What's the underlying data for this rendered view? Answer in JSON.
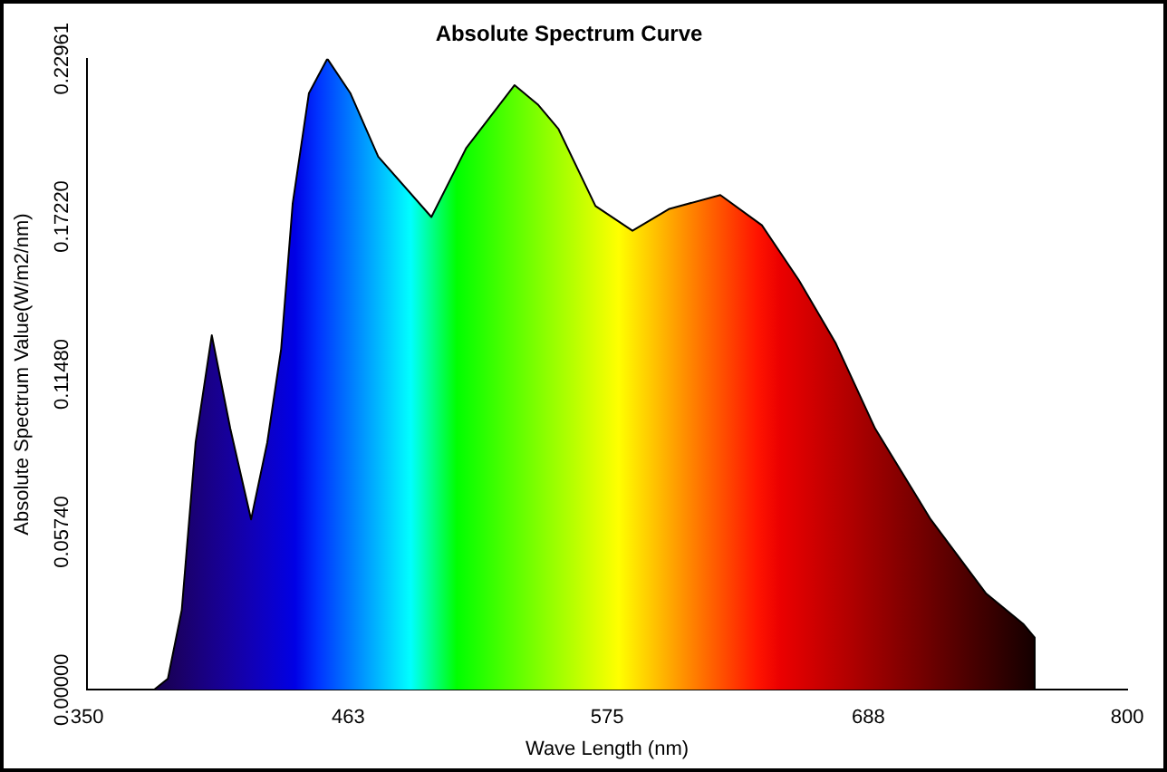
{
  "chart_data": {
    "type": "area",
    "title": "Absolute Spectrum Curve",
    "xlabel": "Wave Length (nm)",
    "ylabel": "Absolute Spectrum Value(W/m2/nm)",
    "x": [
      379,
      385,
      391,
      397,
      404,
      412,
      421,
      428,
      434,
      439,
      446,
      454,
      464,
      476,
      499,
      514,
      535,
      545,
      554,
      570,
      586,
      602,
      624,
      642,
      658,
      674,
      691,
      715,
      739,
      755,
      760,
      760
    ],
    "series": [
      {
        "color": "#000000",
        "values": [
          0,
          0.004,
          0.029,
          0.09,
          0.129,
          0.095,
          0.062,
          0.09,
          0.124,
          0.177,
          0.217,
          0.2296,
          0.217,
          0.194,
          0.172,
          0.197,
          0.22,
          0.213,
          0.204,
          0.176,
          0.167,
          0.175,
          0.18,
          0.169,
          0.149,
          0.126,
          0.095,
          0.062,
          0.035,
          0.024,
          0.019,
          0
        ]
      }
    ],
    "xlim": [
      350,
      800
    ],
    "xticks": [
      350,
      463,
      575,
      688,
      800
    ],
    "ylim": [
      0,
      0.22961
    ],
    "yticks": [
      {
        "value": 0,
        "label": "0.00000"
      },
      {
        "value": 0.0574,
        "label": "0.05740"
      },
      {
        "value": 0.1148,
        "label": "0.11480"
      },
      {
        "value": 0.1722,
        "label": "0.17220"
      },
      {
        "value": 0.22961,
        "label": "0.22961"
      }
    ],
    "grid": false,
    "legend": false,
    "marker": "none"
  }
}
